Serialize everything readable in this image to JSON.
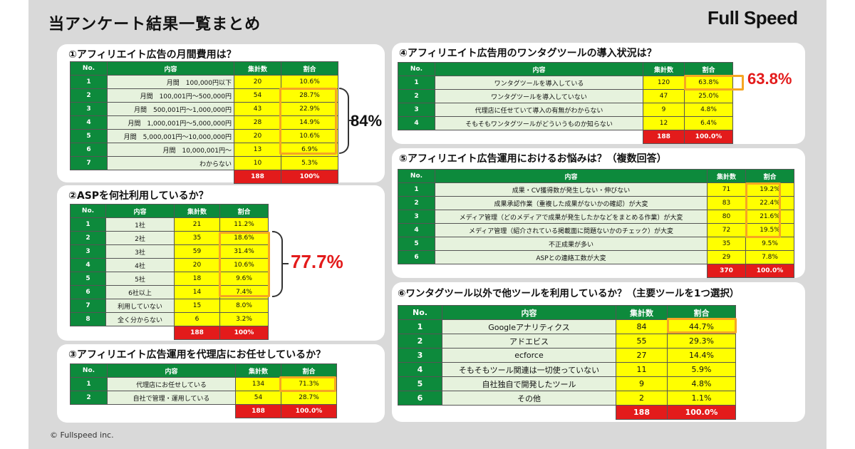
{
  "header": {
    "title": "当アンケート結果一覧まとめ",
    "brand": "Full Speed"
  },
  "footer": {
    "copyright": "© Fullspeed inc."
  },
  "q1": {
    "title": "①アフィリエイト広告の月間費用は？",
    "headers": [
      "No.",
      "内容",
      "集計数",
      "割合"
    ],
    "rows": [
      {
        "no": "1",
        "label": "月間　100,000円以下",
        "count": "20",
        "ratio": "10.6%"
      },
      {
        "no": "2",
        "label": "月間　100,001円〜500,000円",
        "count": "54",
        "ratio": "28.7%"
      },
      {
        "no": "3",
        "label": "月間　500,001円〜1,000,000円",
        "count": "43",
        "ratio": "22.9%"
      },
      {
        "no": "4",
        "label": "月間　1,000,001円〜5,000,000円",
        "count": "28",
        "ratio": "14.9%"
      },
      {
        "no": "5",
        "label": "月間　5,000,001円〜10,000,000円",
        "count": "20",
        "ratio": "10.6%"
      },
      {
        "no": "6",
        "label": "月間　10,000,001円〜",
        "count": "13",
        "ratio": "6.9%"
      },
      {
        "no": "7",
        "label": "わからない",
        "count": "10",
        "ratio": "5.3%"
      }
    ],
    "total": {
      "count": "188",
      "ratio": "100%"
    },
    "summary": "84%"
  },
  "q2": {
    "title": "②ASPを何社利用しているか？",
    "headers": [
      "No.",
      "内容",
      "集計数",
      "割合"
    ],
    "rows": [
      {
        "no": "1",
        "label": "1社",
        "count": "21",
        "ratio": "11.2%"
      },
      {
        "no": "2",
        "label": "2社",
        "count": "35",
        "ratio": "18.6%"
      },
      {
        "no": "3",
        "label": "3社",
        "count": "59",
        "ratio": "31.4%"
      },
      {
        "no": "4",
        "label": "4社",
        "count": "20",
        "ratio": "10.6%"
      },
      {
        "no": "5",
        "label": "5社",
        "count": "18",
        "ratio": "9.6%"
      },
      {
        "no": "6",
        "label": "6社以上",
        "count": "14",
        "ratio": "7.4%"
      },
      {
        "no": "7",
        "label": "利用していない",
        "count": "15",
        "ratio": "8.0%"
      },
      {
        "no": "8",
        "label": "全く分からない",
        "count": "6",
        "ratio": "3.2%"
      }
    ],
    "total": {
      "count": "188",
      "ratio": "100%"
    },
    "summary": "77.7%"
  },
  "q3": {
    "title": "③アフィリエイト広告運用を代理店にお任せしているか？",
    "headers": [
      "No.",
      "内容",
      "集計数",
      "割合"
    ],
    "rows": [
      {
        "no": "1",
        "label": "代理店にお任せしている",
        "count": "134",
        "ratio": "71.3%"
      },
      {
        "no": "2",
        "label": "自社で管理・運用している",
        "count": "54",
        "ratio": "28.7%"
      }
    ],
    "total": {
      "count": "188",
      "ratio": "100.0%"
    }
  },
  "q4": {
    "title": "④アフィリエイト広告用のワンタグツールの導入状況は？",
    "headers": [
      "No.",
      "内容",
      "集計数",
      "割合"
    ],
    "rows": [
      {
        "no": "1",
        "label": "ワンタグツールを導入している",
        "count": "120",
        "ratio": "63.8%"
      },
      {
        "no": "2",
        "label": "ワンタグツールを導入していない",
        "count": "47",
        "ratio": "25.0%"
      },
      {
        "no": "3",
        "label": "代理店に任せていて導入の有無がわからない",
        "count": "9",
        "ratio": "4.8%"
      },
      {
        "no": "4",
        "label": "そもそもワンタグツールがどういうものか知らない",
        "count": "12",
        "ratio": "6.4%"
      }
    ],
    "total": {
      "count": "188",
      "ratio": "100.0%"
    },
    "summary": "63.8%"
  },
  "q5": {
    "title": "⑤アフィリエイト広告運用におけるお悩みは？（複数回答）",
    "headers": [
      "No.",
      "内容",
      "集計数",
      "割合"
    ],
    "rows": [
      {
        "no": "1",
        "label": "成果・CV獲得数が発生しない・伸びない",
        "count": "71",
        "ratio": "19.2%"
      },
      {
        "no": "2",
        "label": "成果承認作業（重複した成果がないかの確認）が大変",
        "count": "83",
        "ratio": "22.4%"
      },
      {
        "no": "3",
        "label": "メディア管理（どのメディアで成果が発生したかなどをまとめる作業）が大変",
        "count": "80",
        "ratio": "21.6%"
      },
      {
        "no": "4",
        "label": "メディア管理（紹介されている掲載面に問題ないかのチェック）が大変",
        "count": "72",
        "ratio": "19.5%"
      },
      {
        "no": "5",
        "label": "不正成果が多い",
        "count": "35",
        "ratio": "9.5%"
      },
      {
        "no": "6",
        "label": "ASPとの連絡工数が大変",
        "count": "29",
        "ratio": "7.8%"
      }
    ],
    "total": {
      "count": "370",
      "ratio": "100.0%"
    }
  },
  "q6": {
    "title": "⑥ワンタグツール以外で他ツールを利用しているか？（主要ツールを1つ選択）",
    "headers": [
      "No.",
      "内容",
      "集計数",
      "割合"
    ],
    "rows": [
      {
        "no": "1",
        "label": "Googleアナリティクス",
        "count": "84",
        "ratio": "44.7%"
      },
      {
        "no": "2",
        "label": "アドエビス",
        "count": "55",
        "ratio": "29.3%"
      },
      {
        "no": "3",
        "label": "ecforce",
        "count": "27",
        "ratio": "14.4%"
      },
      {
        "no": "4",
        "label": "そもそもツール関連は一切使っていない",
        "count": "11",
        "ratio": "5.9%"
      },
      {
        "no": "5",
        "label": "自社独自で開発したツール",
        "count": "9",
        "ratio": "4.8%"
      },
      {
        "no": "6",
        "label": "その他",
        "count": "2",
        "ratio": "1.1%"
      }
    ],
    "total": {
      "count": "188",
      "ratio": "100.0%"
    }
  }
}
